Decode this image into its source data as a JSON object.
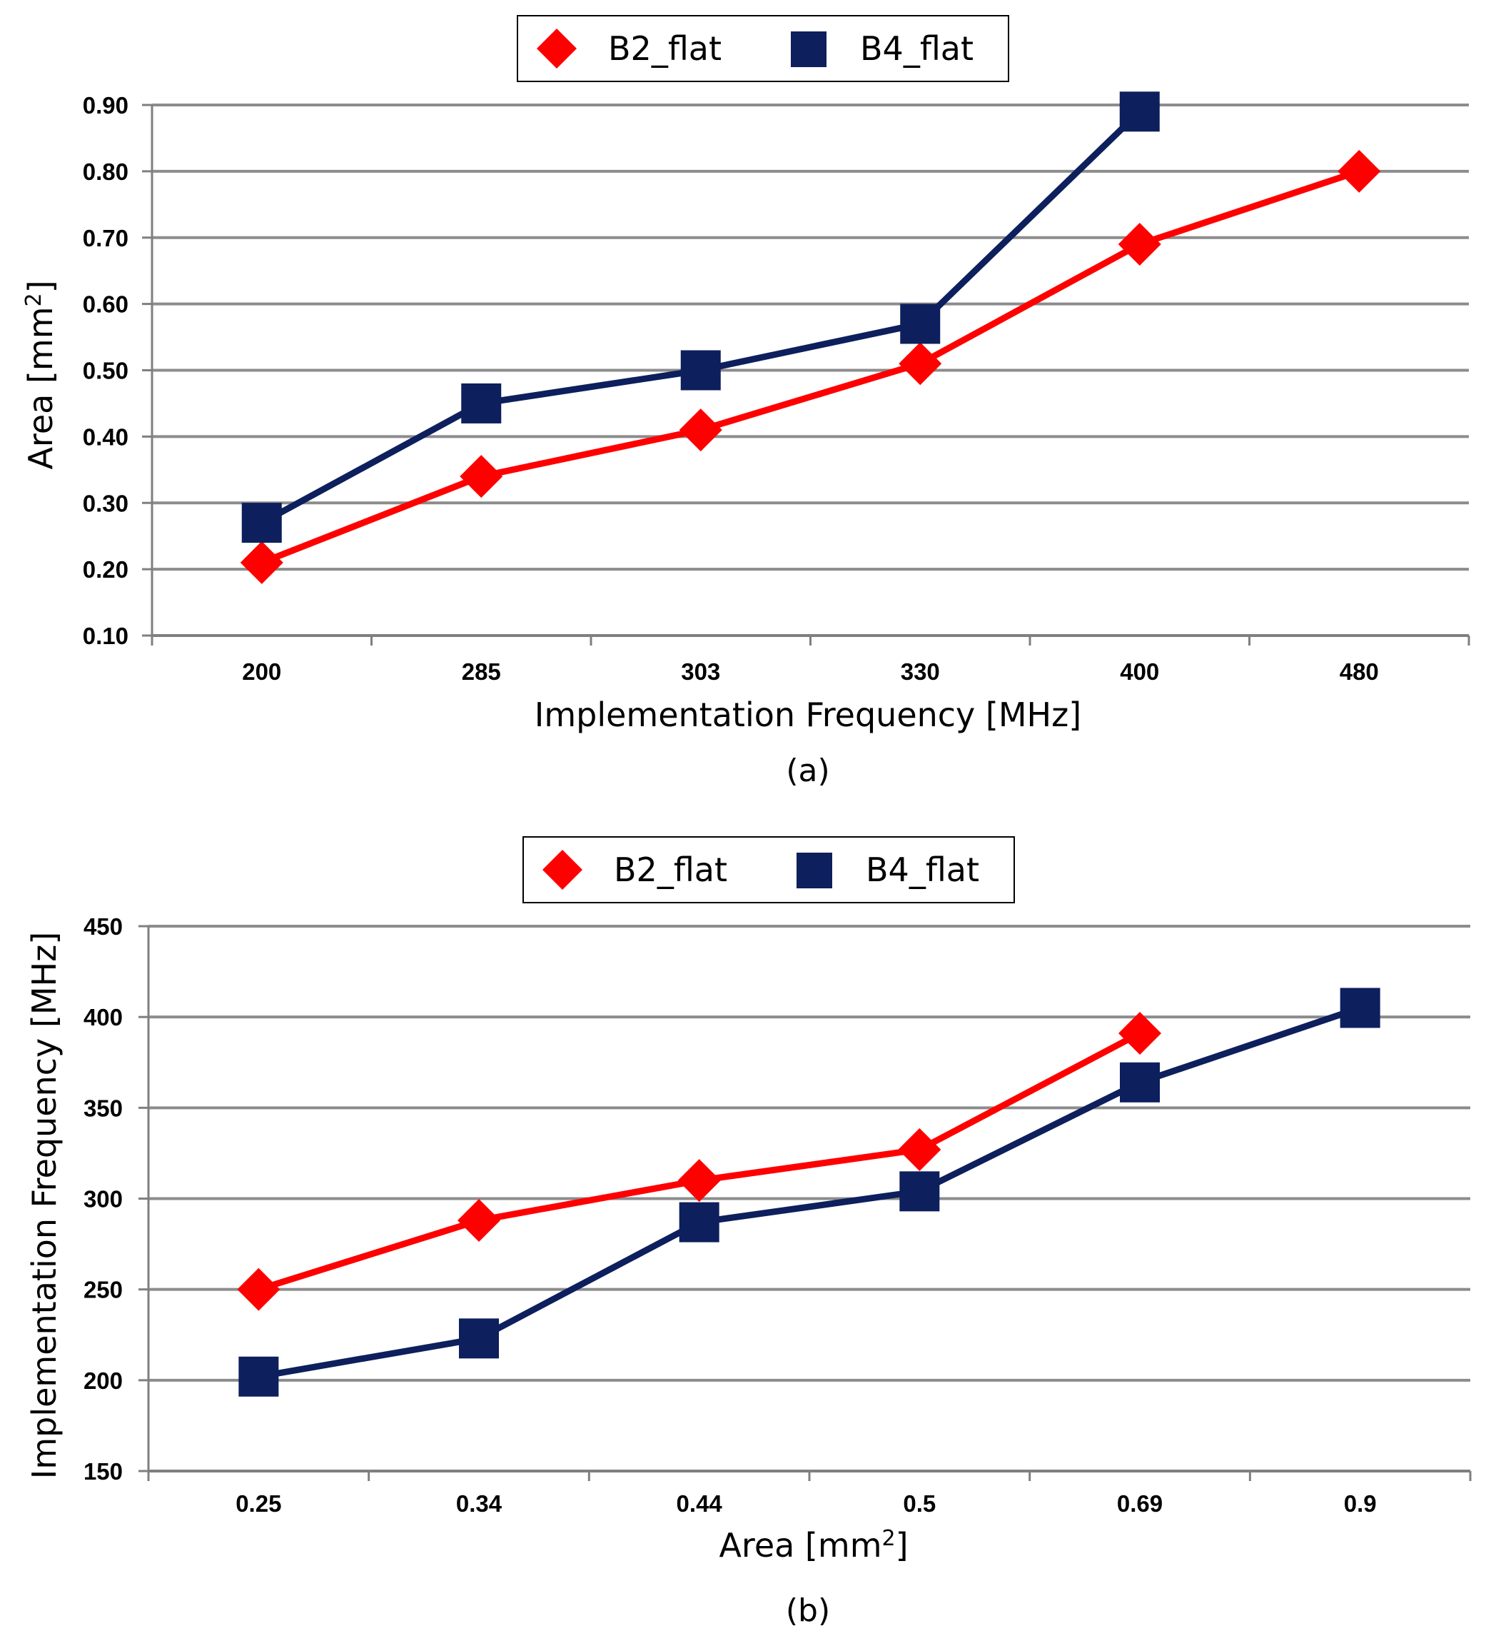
{
  "chart_data": [
    {
      "type": "line",
      "panel_label": "(a)",
      "categories": [
        "200",
        "285",
        "303",
        "330",
        "400",
        "480"
      ],
      "series": [
        {
          "name": "B2_flat",
          "marker": "diamond",
          "color": "#FF0000",
          "values": [
            0.21,
            0.34,
            0.41,
            0.51,
            0.69,
            0.8
          ]
        },
        {
          "name": "B4_flat",
          "marker": "square",
          "color": "#0D1F5C",
          "values": [
            0.27,
            0.45,
            0.5,
            0.57,
            0.89,
            null
          ]
        }
      ],
      "xlabel": "Implementation Frequency [MHz]",
      "ylabel": "Area [mm",
      "ylabel_sup": "2",
      "ylabel_close": "]",
      "ylim": [
        0.1,
        0.9
      ],
      "yticks": [
        "0.10",
        "0.20",
        "0.30",
        "0.40",
        "0.50",
        "0.60",
        "0.70",
        "0.80",
        "0.90"
      ],
      "grid": true,
      "legend": "top-center"
    },
    {
      "type": "line",
      "panel_label": "(b)",
      "categories": [
        "0.25",
        "0.34",
        "0.44",
        "0.5",
        "0.69",
        "0.9"
      ],
      "series": [
        {
          "name": "B2_flat",
          "marker": "diamond",
          "color": "#FF0000",
          "values": [
            250,
            288,
            310,
            327,
            391,
            null
          ]
        },
        {
          "name": "B4_flat",
          "marker": "square",
          "color": "#0D1F5C",
          "values": [
            202,
            223,
            287,
            304,
            364,
            405
          ]
        }
      ],
      "xlabel": "Area [mm",
      "xlabel_sup": "2",
      "xlabel_close": "]",
      "ylabel": "Implementation Frequency [MHz]",
      "ylim": [
        150,
        450
      ],
      "yticks": [
        "150",
        "200",
        "250",
        "300",
        "350",
        "400",
        "450"
      ],
      "grid": true,
      "legend": "top-center"
    }
  ],
  "colors": {
    "grid": "#8C8C8C",
    "axis": "#7F7F7F",
    "red": "#FF0000",
    "navy": "#0D1F5C"
  }
}
